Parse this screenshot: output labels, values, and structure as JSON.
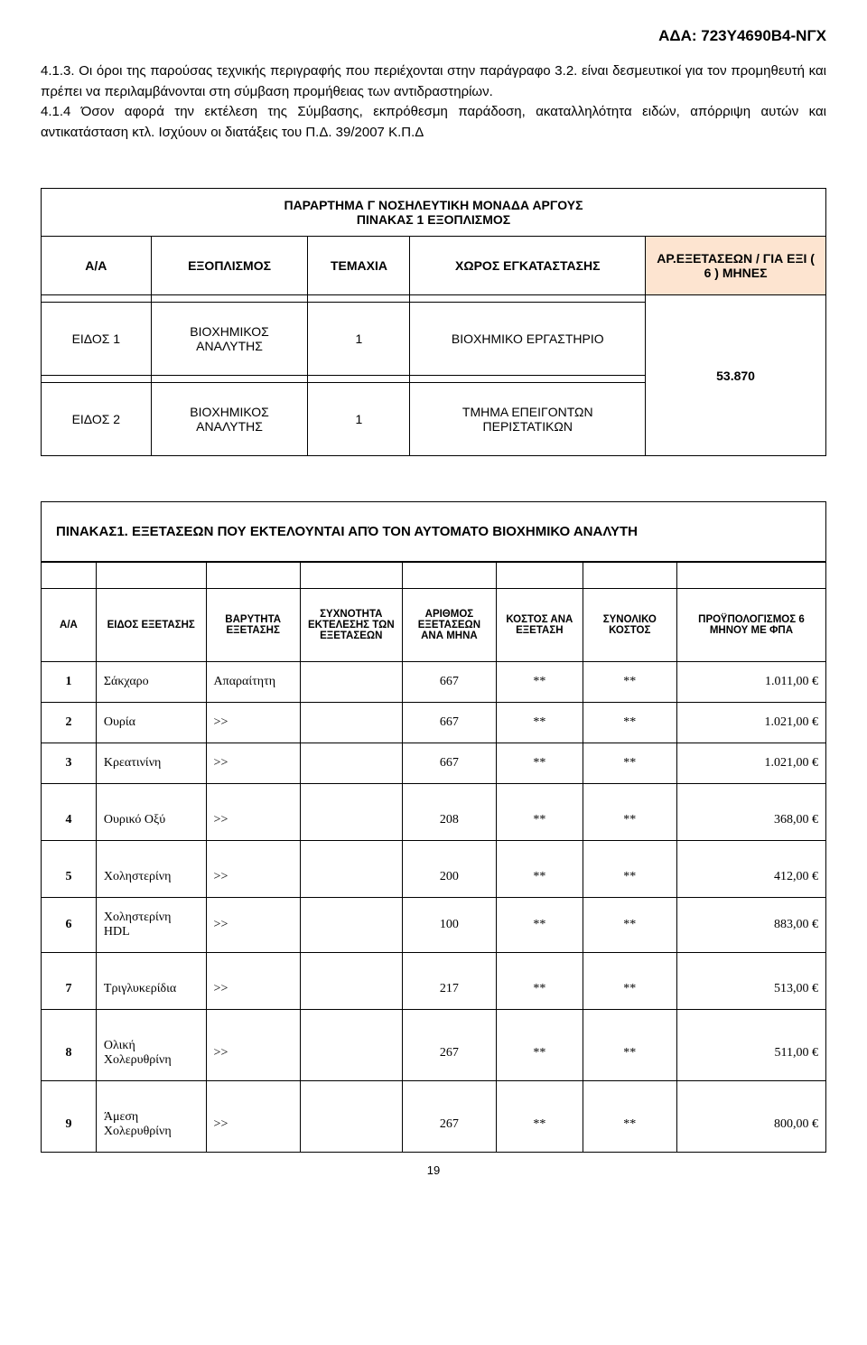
{
  "header_code": "ΑΔΑ: 723Υ4690Β4-ΝΓΧ",
  "paragraphs": {
    "p1": "4.1.3. Οι όροι της παρούσας τεχνικής περιγραφής που περιέχονται στην παράγραφο 3.2. είναι δεσμευτικοί για τον προμηθευτή και πρέπει να περιλαμβάνονται στη σύμβαση προμήθειας των αντιδραστηρίων.",
    "p2": "4.1.4 Όσον αφορά την εκτέλεση της Σύμβασης, εκπρόθεσμη παράδοση, ακαταλληλότητα ειδών, απόρριψη αυτών και αντικατάσταση κτλ. Ισχύουν οι διατάξεις του Π.Δ. 39/2007 Κ.Π.Δ"
  },
  "table1": {
    "title_line1": "ΠΑΡΑΡΤΗΜΑ Γ ΝΟΣΗΛΕΥΤΙΚΗ ΜΟΝΑΔΑ  ΑΡΓΟΥΣ",
    "title_line2": "ΠΙΝΑΚΑΣ 1    ΕΞΟΠΛΙΣΜΟΣ",
    "headers": {
      "c1": "Α/Α",
      "c2": "ΕΞΟΠΛΙΣΜΟΣ",
      "c3": "ΤΕΜΑΧΙΑ",
      "c4": "ΧΩΡΟΣ ΕΓΚΑΤΑΣΤΑΣΗΣ",
      "c5": "ΑΡ.ΕΞΕΤΑΣΕΩΝ / ΓΙΑ ΕΞΙ ( 6 ) ΜΗΝΕΣ"
    },
    "accent_color": "#fde4d0",
    "rows": [
      {
        "c1": "ΕΙΔΟΣ 1",
        "c2": "ΒΙΟΧΗΜΙΚΟΣ ΑΝΑΛΥΤΗΣ",
        "c3": "1",
        "c4": "ΒΙΟΧΗΜΙΚΟ ΕΡΓΑΣΤΗΡΙΟ"
      },
      {
        "c1": "ΕΙΔΟΣ 2",
        "c2": "ΒΙΟΧΗΜΙΚΟΣ ΑΝΑΛΥΤΗΣ",
        "c3": "1",
        "c4": "ΤΜΗΜΑ ΕΠΕΙΓΟΝΤΩΝ ΠΕΡΙΣΤΑΤΙΚΩΝ"
      }
    ],
    "merged_value": "53.870"
  },
  "table2": {
    "title": "ΠΙΝΑΚΑΣ1.  ΕΞΕΤΑΣΕΩΝ ΠΟΥ ΕΚΤΕΛΟΥΝΤΑΙ ΑΠΌ ΤΟΝ ΑΥΤΟΜΑΤΟ ΒΙΟΧΗΜΙΚΟ ΑΝΑΛΥΤΗ",
    "headers": {
      "c1": "Α/Α",
      "c2": "ΕΙΔΟΣ ΕΞΕΤΑΣΗΣ",
      "c3": "ΒΑΡΥΤΗΤΑ ΕΞΕΤΑΣΗΣ",
      "c4": "ΣΥΧΝΟΤΗΤΑ ΕΚΤΕΛΕΣΗΣ ΤΩΝ ΕΞΕΤΑΣΕΩΝ",
      "c5": "ΑΡΙΘΜΟΣ ΕΞΕΤΑΣΕΩΝ ΑΝΑ ΜΗΝΑ",
      "c6": "ΚΟΣΤΟΣ ΑΝΑ ΕΞΕΤΑΣΗ",
      "c7": "ΣΥΝΟΛΙΚΟ ΚΟΣΤΟΣ",
      "c8": "ΠΡΟΫΠΟΛΟΓΙΣΜΟΣ           6 ΜΗΝΟΥ ΜΕ ΦΠΑ"
    },
    "rows": [
      {
        "n": "1",
        "type": "Σάκχαρο",
        "weight": "Απαραίτητη",
        "freq": "",
        "count": "667",
        "cost": "**",
        "total": "**",
        "budget": "1.011,00 €"
      },
      {
        "n": "2",
        "type": "Ουρία",
        "weight": ">>",
        "freq": "",
        "count": "667",
        "cost": "**",
        "total": "**",
        "budget": "1.021,00 €"
      },
      {
        "n": "3",
        "type": "Κρεατινίνη",
        "weight": ">>",
        "freq": "",
        "count": "667",
        "cost": "**",
        "total": "**",
        "budget": "1.021,00 €"
      },
      {
        "n": "4",
        "type": "Ουρικό Οξύ",
        "weight": ">>",
        "freq": "",
        "count": "208",
        "cost": "**",
        "total": "**",
        "budget": "368,00 €",
        "tall": true
      },
      {
        "n": "5",
        "type": "Χοληστερίνη",
        "weight": ">>",
        "freq": "",
        "count": "200",
        "cost": "**",
        "total": "**",
        "budget": "412,00 €",
        "tall": true
      },
      {
        "n": "6",
        "type": "Χοληστερίνη HDL",
        "weight": ">>",
        "freq": "",
        "count": "100",
        "cost": "**",
        "total": "**",
        "budget": "883,00 €"
      },
      {
        "n": "7",
        "type": "Τριγλυκερίδια",
        "weight": ">>",
        "freq": "",
        "count": "217",
        "cost": "**",
        "total": "**",
        "budget": "513,00 €",
        "tall": true
      },
      {
        "n": "8",
        "type": "Ολική Χολερυθρίνη",
        "weight": ">>",
        "freq": "",
        "count": "267",
        "cost": "**",
        "total": "**",
        "budget": "511,00 €",
        "tall": true
      },
      {
        "n": "9",
        "type": "Άμεση Χολερυθρίνη",
        "weight": ">>",
        "freq": "",
        "count": "267",
        "cost": "**",
        "total": "**",
        "budget": "800,00 €",
        "tall": true
      }
    ]
  },
  "page_number": "19"
}
